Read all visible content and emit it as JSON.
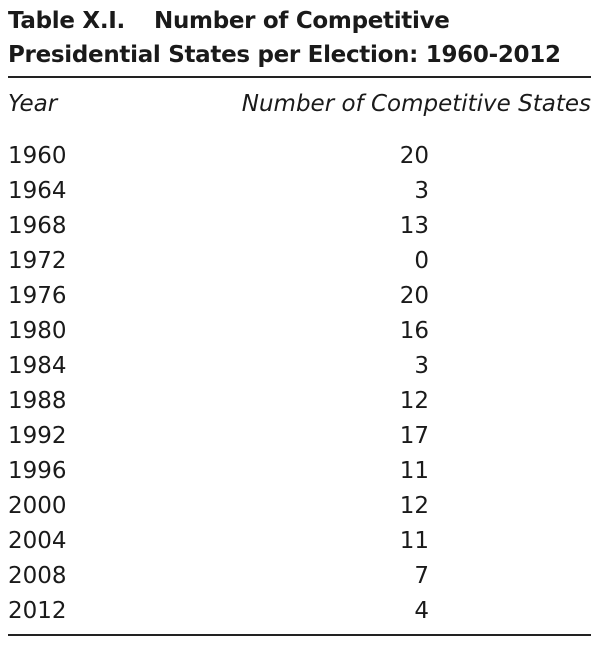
{
  "table": {
    "title_number": "Table X.I.",
    "title_line1": "Number of Competitive",
    "title_line2": "Presidential States per Election: 1960-2012",
    "headers": {
      "year": "Year",
      "number": "Number of Competitive States"
    },
    "rows": [
      {
        "year": "1960",
        "value": "20"
      },
      {
        "year": "1964",
        "value": "3"
      },
      {
        "year": "1968",
        "value": "13"
      },
      {
        "year": "1972",
        "value": "0"
      },
      {
        "year": "1976",
        "value": "20"
      },
      {
        "year": "1980",
        "value": "16"
      },
      {
        "year": "1984",
        "value": "3"
      },
      {
        "year": "1988",
        "value": "12"
      },
      {
        "year": "1992",
        "value": "17"
      },
      {
        "year": "1996",
        "value": "11"
      },
      {
        "year": "2000",
        "value": "12"
      },
      {
        "year": "2004",
        "value": "11"
      },
      {
        "year": "2008",
        "value": "7"
      },
      {
        "year": "2012",
        "value": "4"
      }
    ]
  }
}
